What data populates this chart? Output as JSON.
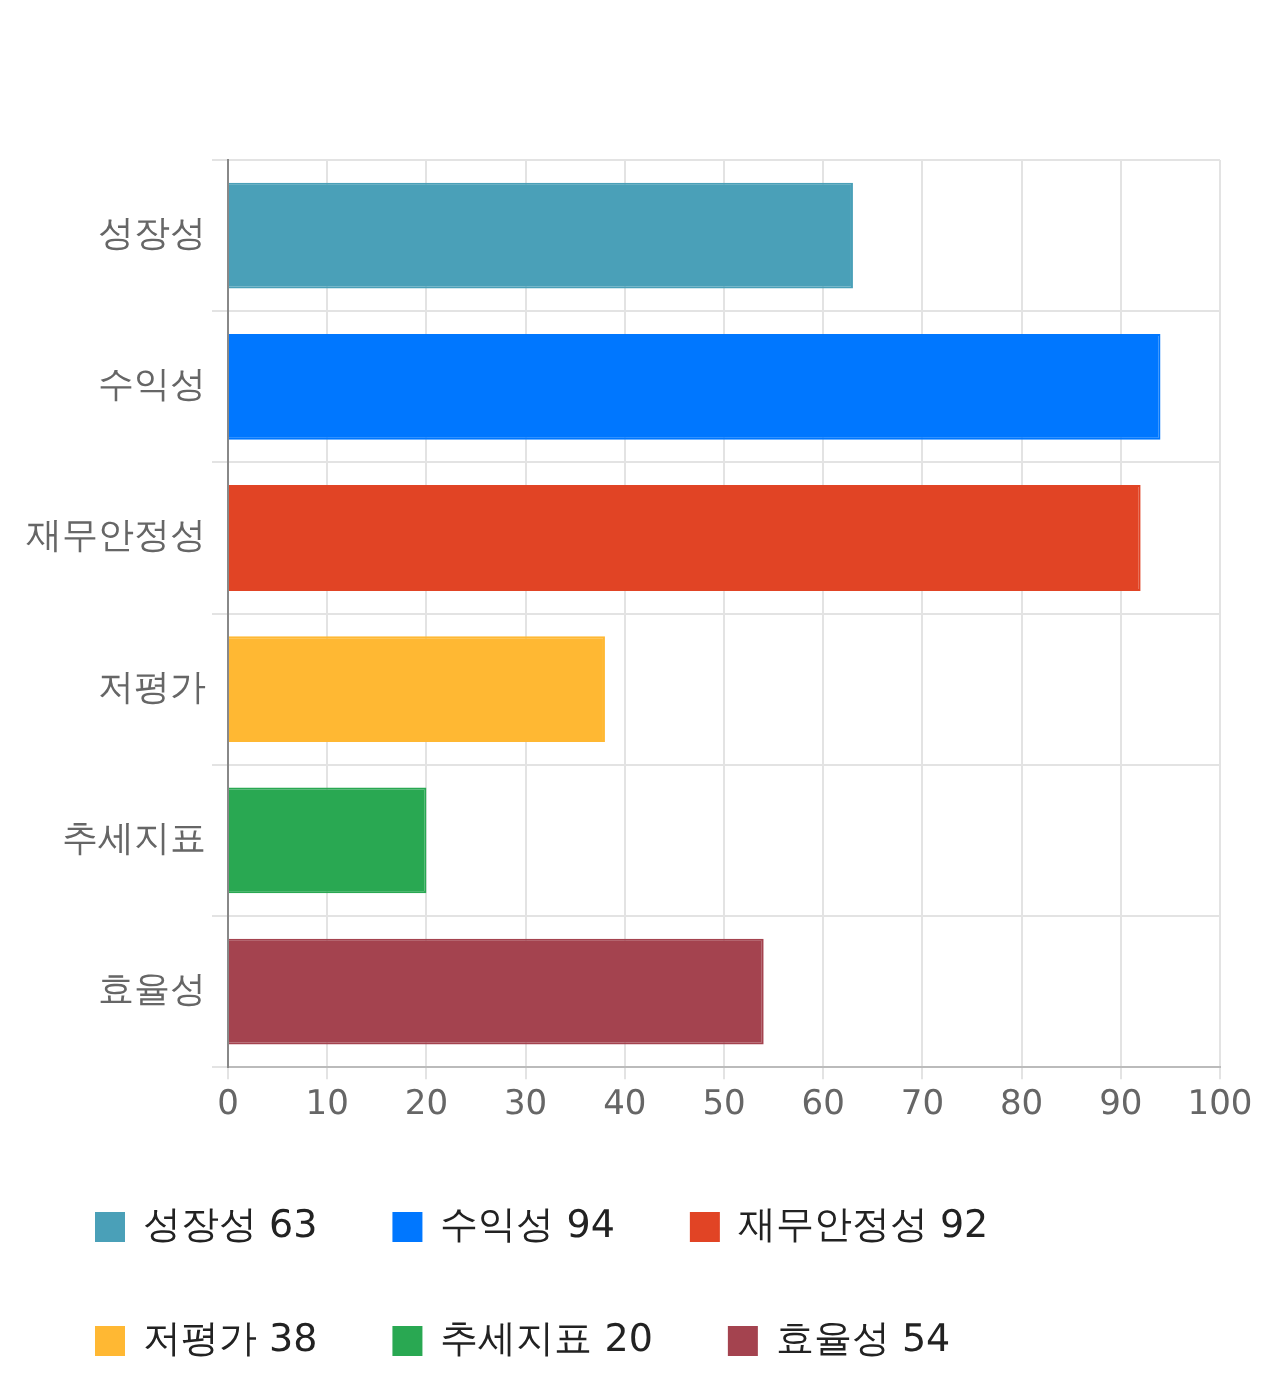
{
  "chart_data": {
    "type": "bar",
    "orientation": "horizontal",
    "categories": [
      "성장성",
      "수익성",
      "재무안정성",
      "저평가",
      "추세지표",
      "효율성"
    ],
    "series": [
      {
        "name": "성장성 63",
        "color": "#4aa0b8",
        "values": [
          63,
          null,
          null,
          null,
          null,
          null
        ]
      },
      {
        "name": "수익성 94",
        "color": "#0077ff",
        "values": [
          null,
          94,
          null,
          null,
          null,
          null
        ]
      },
      {
        "name": "재무안정성 92",
        "color": "#e14425",
        "values": [
          null,
          null,
          92,
          null,
          null,
          null
        ]
      },
      {
        "name": "저평가 38",
        "color": "#ffb833",
        "values": [
          null,
          null,
          null,
          38,
          null,
          null
        ]
      },
      {
        "name": "추세지표 20",
        "color": "#29a852",
        "values": [
          null,
          null,
          null,
          null,
          20,
          null
        ]
      },
      {
        "name": "효율성 54",
        "color": "#a4434f",
        "values": [
          null,
          null,
          null,
          null,
          null,
          54
        ]
      }
    ],
    "xlim": [
      0,
      100
    ],
    "xticks": [
      0,
      10,
      20,
      30,
      40,
      50,
      60,
      70,
      80,
      90,
      100
    ],
    "grid": true,
    "legend": "bottom"
  }
}
